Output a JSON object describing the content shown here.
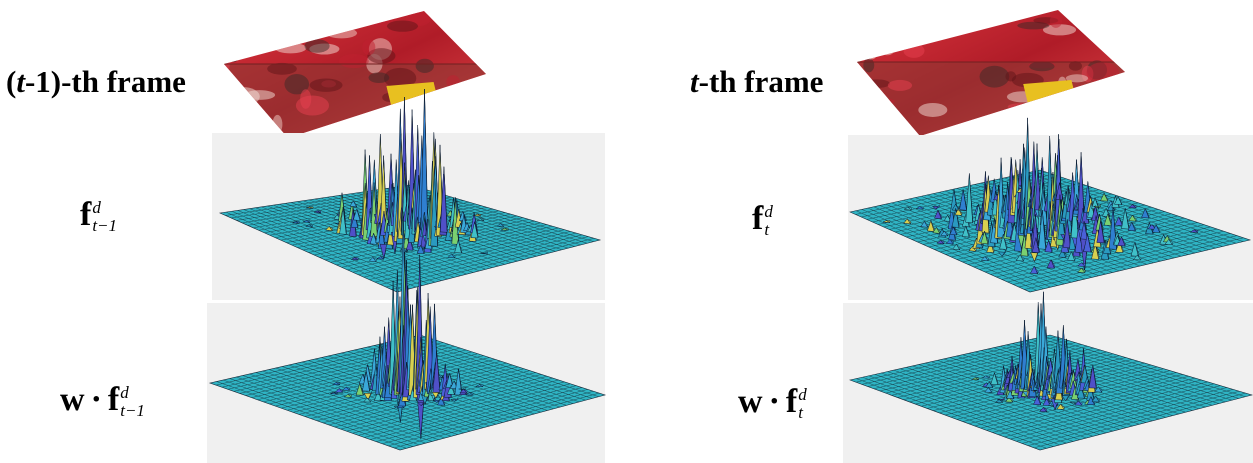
{
  "columns": [
    {
      "frame_label": {
        "parts": [
          "(",
          "t",
          "-1)-th frame"
        ]
      },
      "feature_label": {
        "base": "f",
        "sup": "d",
        "sub": "t−1"
      },
      "weighted_label": {
        "prefix": "w",
        "op": "·",
        "base": "f",
        "sup": "d",
        "sub": "t−1"
      }
    },
    {
      "frame_label": {
        "parts": [
          "t",
          "-th frame"
        ]
      },
      "feature_label": {
        "base": "f",
        "sup": "d",
        "sub": "t"
      },
      "weighted_label": {
        "prefix": "w",
        "op": "·",
        "base": "f",
        "sup": "d",
        "sub": "t"
      }
    }
  ]
}
